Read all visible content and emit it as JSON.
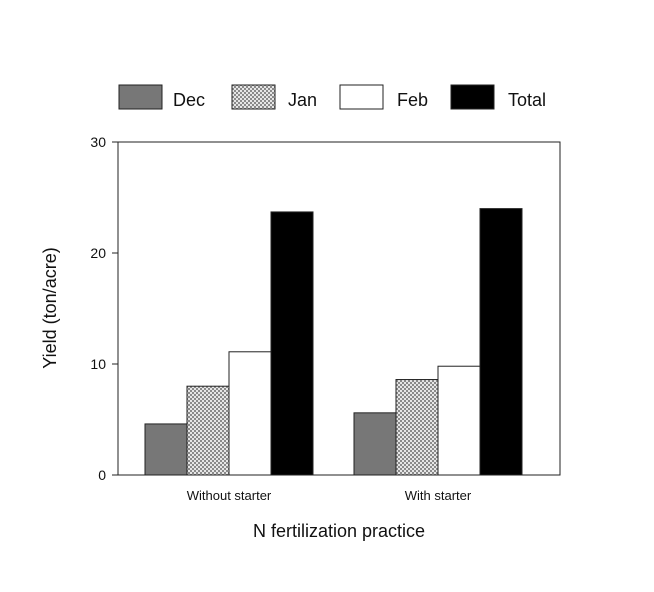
{
  "chart_data": {
    "type": "bar",
    "xlabel": "N fertilization practice",
    "ylabel": "Yield (ton/acre)",
    "ylim": [
      0,
      30
    ],
    "yticks": [
      0,
      10,
      20,
      30
    ],
    "grid": false,
    "legend_position": "top",
    "categories": [
      "Without starter",
      "With starter"
    ],
    "series": [
      {
        "name": "Dec",
        "values": [
          4.6,
          5.6
        ],
        "color": "#777777",
        "fill": "solid"
      },
      {
        "name": "Jan",
        "values": [
          8.0,
          8.6
        ],
        "color": "#bbbbbb",
        "fill": "checker"
      },
      {
        "name": "Feb",
        "values": [
          11.1,
          9.8
        ],
        "color": "#ffffff",
        "fill": "solid"
      },
      {
        "name": "Total",
        "values": [
          23.7,
          24.0
        ],
        "color": "#000000",
        "fill": "solid"
      }
    ]
  }
}
